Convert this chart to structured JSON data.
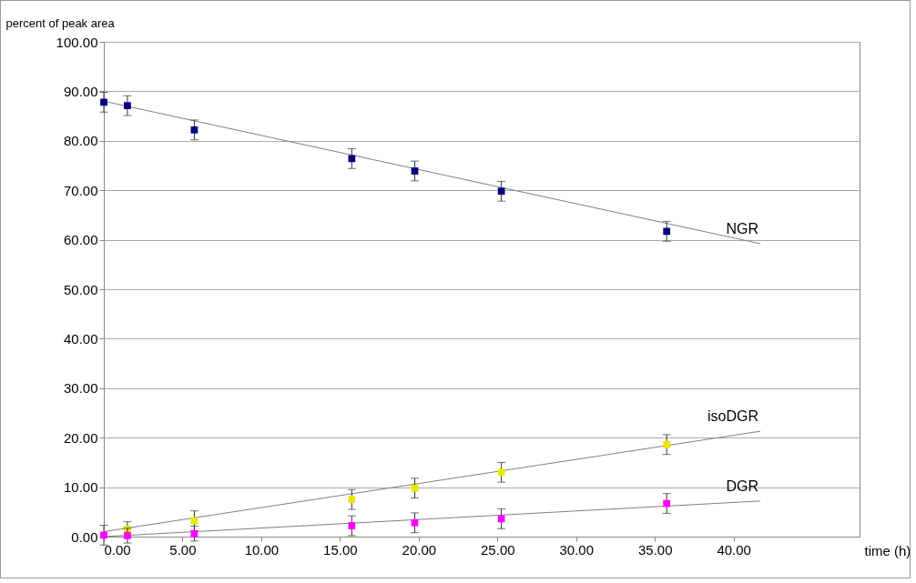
{
  "chart_data": {
    "type": "scatter",
    "xlabel": "time (h)",
    "ylabel": "percent of peak area",
    "xlim": [
      0,
      48
    ],
    "ylim": [
      0,
      100
    ],
    "xticks": [
      {
        "value": 0,
        "label": "0.00"
      },
      {
        "value": 5,
        "label": "5.00"
      },
      {
        "value": 10,
        "label": "10.00"
      },
      {
        "value": 15,
        "label": "15.00"
      },
      {
        "value": 20,
        "label": "20.00"
      },
      {
        "value": 25,
        "label": "25.00"
      },
      {
        "value": 30,
        "label": "30.00"
      },
      {
        "value": 35,
        "label": "35.00"
      },
      {
        "value": 40,
        "label": "40.00"
      }
    ],
    "yticks": [
      {
        "value": 0,
        "label": "0.00"
      },
      {
        "value": 10,
        "label": "10.00"
      },
      {
        "value": 20,
        "label": "20.00"
      },
      {
        "value": 30,
        "label": "30.00"
      },
      {
        "value": 40,
        "label": "40.00"
      },
      {
        "value": 50,
        "label": "50.00"
      },
      {
        "value": 60,
        "label": "60.00"
      },
      {
        "value": 70,
        "label": "70.00"
      },
      {
        "value": 80,
        "label": "80.00"
      },
      {
        "value": 90,
        "label": "90.00"
      },
      {
        "value": 100,
        "label": "100.00"
      }
    ],
    "grid": "y",
    "marker": "square",
    "series": [
      {
        "color": "#000080",
        "x": [
          0,
          1.5,
          5.75,
          15.75,
          19.75,
          25.25,
          35.75
        ],
        "values": [
          87.8,
          87.1,
          82.2,
          76.4,
          73.9,
          69.8,
          61.7
        ],
        "errors": [
          2,
          2,
          2,
          2,
          2,
          2,
          2
        ]
      },
      {
        "color": "#e8e800",
        "x": [
          1.5,
          5.75,
          15.75,
          19.75,
          25.25,
          35.75
        ],
        "values": [
          1.5,
          3.2,
          7.5,
          9.8,
          13.0,
          18.6
        ],
        "errors": [
          1.5,
          2,
          2,
          2,
          2,
          2
        ]
      },
      {
        "color": "#ff00ff",
        "x": [
          0,
          1.5,
          5.75,
          15.75,
          19.75,
          25.25,
          35.75
        ],
        "values": [
          0.3,
          0.2,
          0.6,
          2.2,
          2.8,
          3.6,
          6.7
        ],
        "errors": [
          2,
          1.5,
          1.5,
          2,
          2,
          2,
          2
        ]
      },
      {
        "type": "line",
        "name": "NGR",
        "marker": "none",
        "color": "#808080",
        "x": [
          0,
          41.7
        ],
        "values": [
          88.0,
          59.2
        ]
      },
      {
        "type": "line",
        "name": "isoDGR",
        "marker": "none",
        "color": "#808080",
        "x": [
          0,
          41.7
        ],
        "values": [
          1.0,
          21.3
        ]
      },
      {
        "type": "line",
        "name": "DGR",
        "marker": "none",
        "color": "#808080",
        "x": [
          0,
          41.7
        ],
        "values": [
          0,
          7.2
        ]
      }
    ]
  }
}
